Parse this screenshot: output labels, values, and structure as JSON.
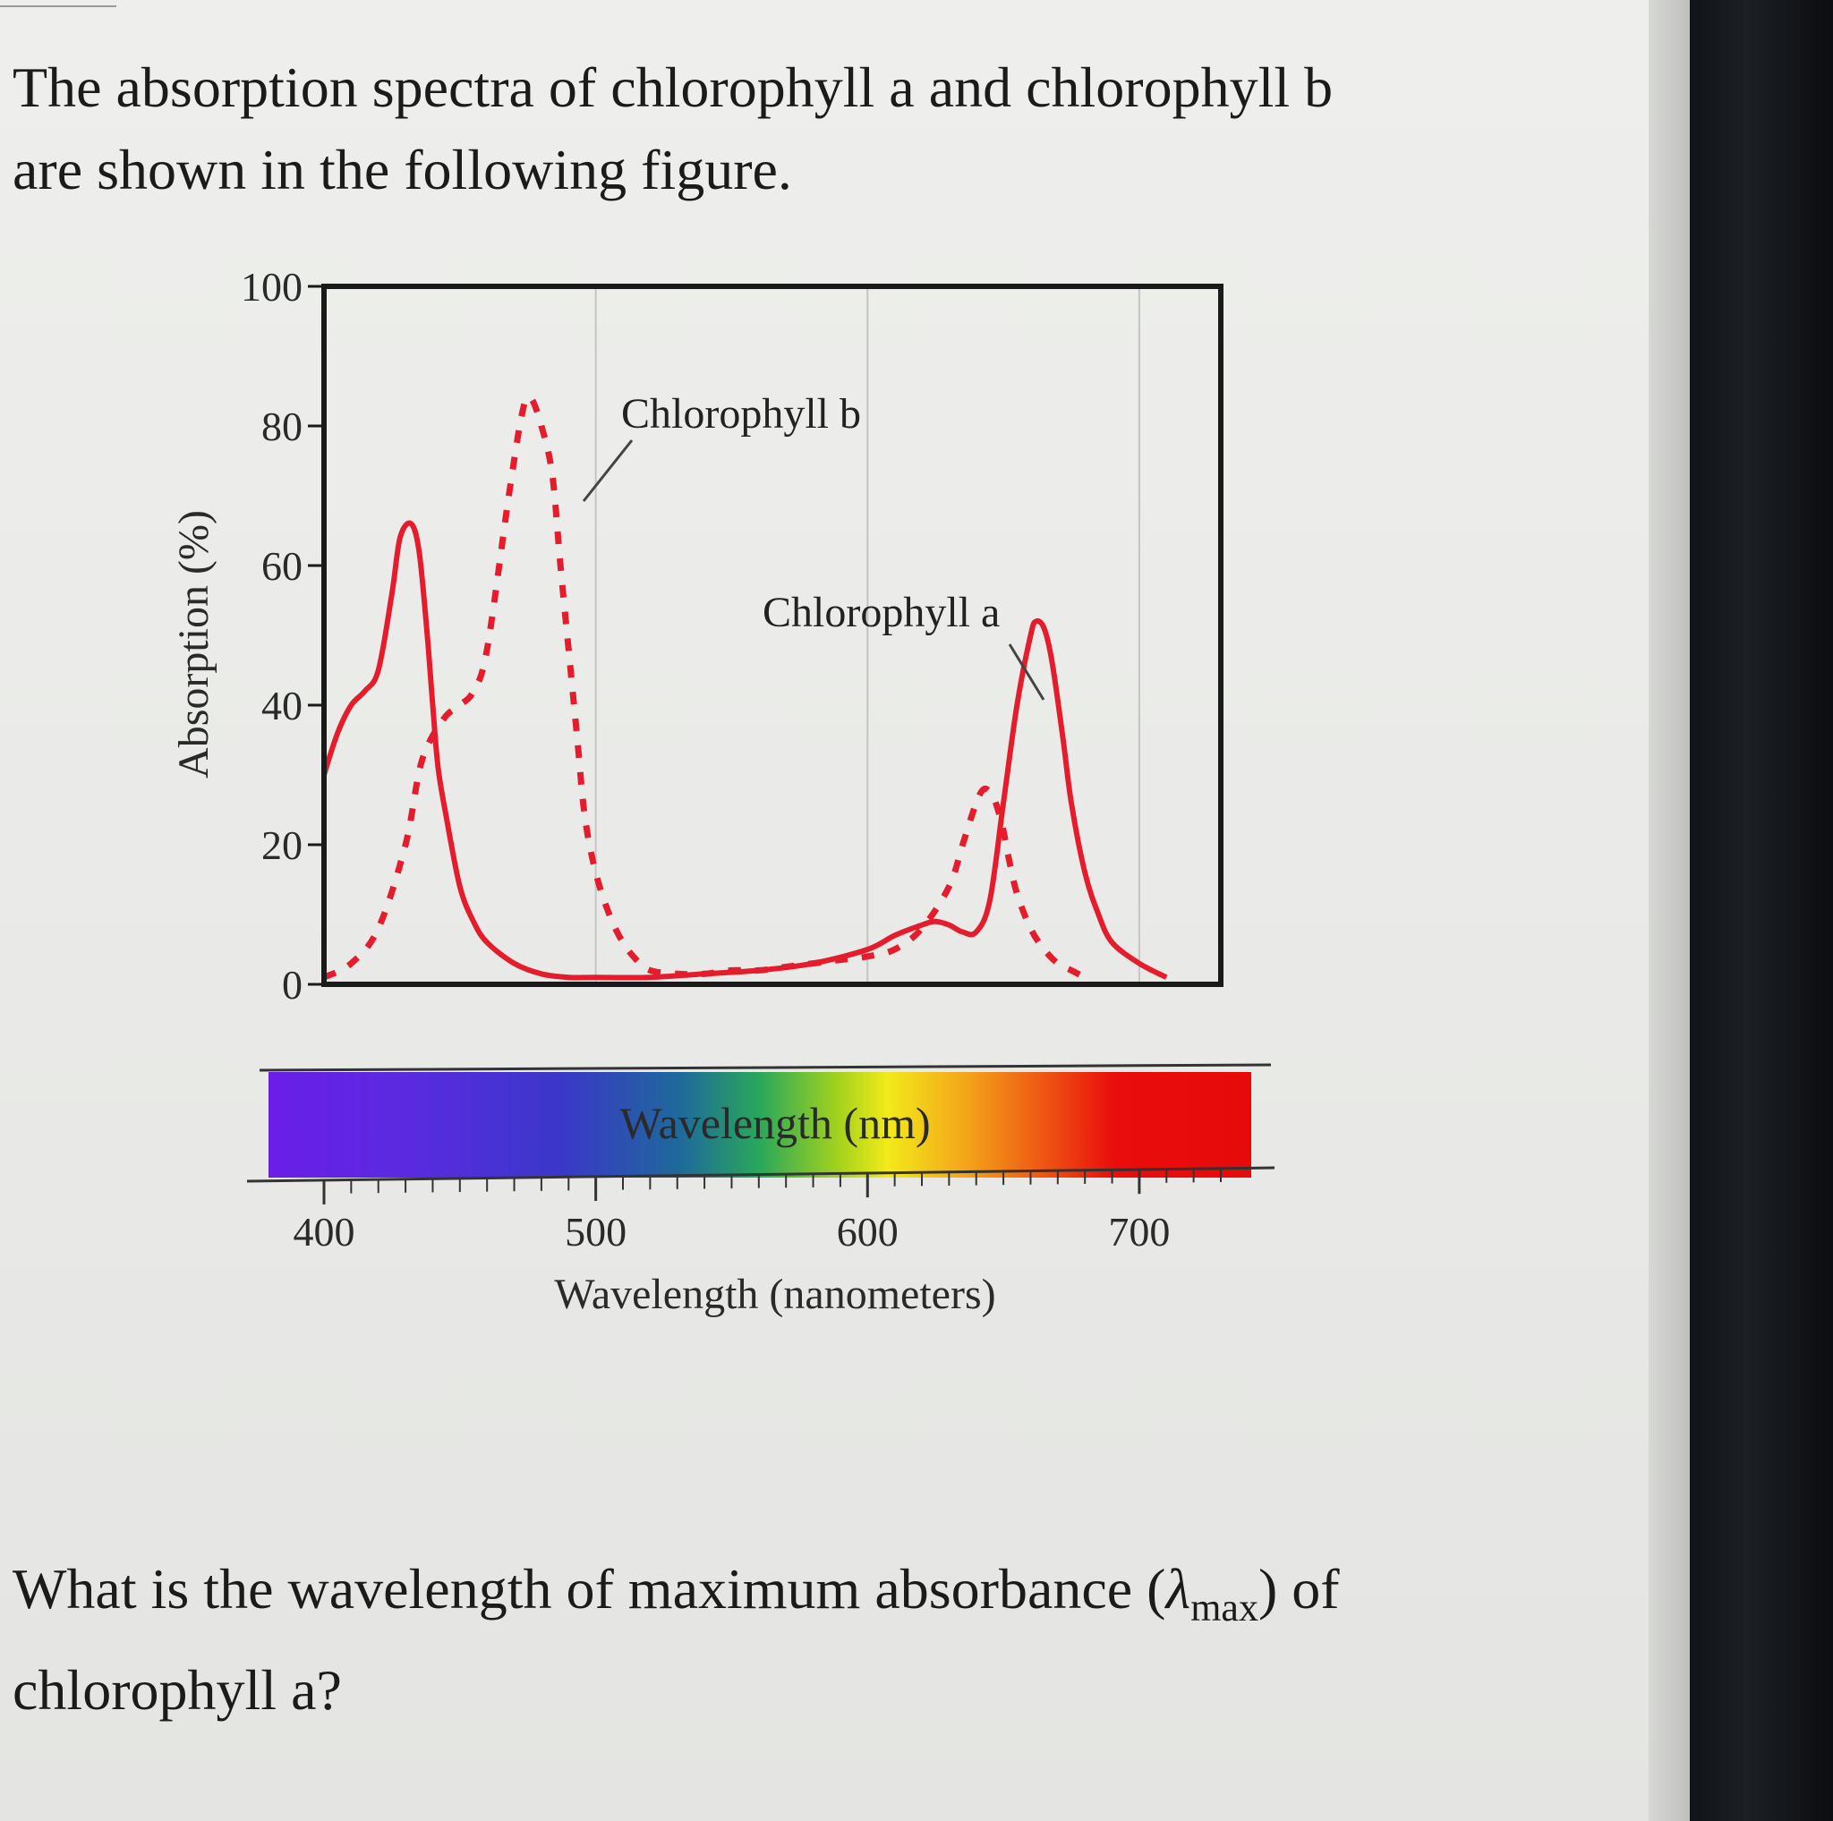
{
  "intro": {
    "line1": "The absorption spectra of chlorophyll a and chlorophyll b",
    "line2": "are shown in the following figure."
  },
  "question": {
    "line1_prefix": "What is the wavelength of maximum absorbance (",
    "lambda": "λ",
    "lambda_sub": "max",
    "line1_suffix": ") of",
    "line2": "chlorophyll a?"
  },
  "colors": {
    "curve": "#e41c2c",
    "frame": "#1a1a1a",
    "grid": "#c4c4c4",
    "leader": "#444444"
  },
  "chart_data": {
    "type": "line",
    "title": "",
    "xlabel": "Wavelength (nanometers)",
    "ylabel": "Absorption (%)",
    "spectrum_label": "Wavelength (nm)",
    "xlim": [
      400,
      730
    ],
    "ylim": [
      0,
      100
    ],
    "x_ticks": [
      400,
      500,
      600,
      700
    ],
    "y_ticks": [
      0,
      20,
      40,
      60,
      80,
      100
    ],
    "grid": "vertical lines at 500, 600, 700",
    "series": [
      {
        "name": "Chlorophyll b",
        "style": "dashed",
        "x": [
          400,
          410,
          420,
          430,
          436,
          444,
          450,
          455,
          460,
          468,
          473,
          476,
          480,
          484,
          487,
          490,
          493,
          496,
          500,
          505,
          510,
          515,
          520,
          530,
          540,
          550,
          560,
          570,
          580,
          590,
          600,
          610,
          620,
          630,
          635,
          640,
          643,
          646,
          648,
          650,
          652,
          655,
          660,
          665,
          670,
          675,
          680
        ],
        "y": [
          1,
          3,
          8,
          20,
          32,
          38,
          40,
          42,
          48,
          70,
          82,
          84,
          80,
          73,
          60,
          48,
          36,
          24,
          16,
          10,
          6,
          3.5,
          2,
          1.5,
          1.5,
          2,
          2,
          2.5,
          3,
          3.5,
          4,
          5,
          8,
          14,
          20,
          26,
          28,
          27,
          25,
          22,
          18,
          13,
          8,
          5,
          3,
          2,
          1
        ]
      },
      {
        "name": "Chlorophyll a",
        "style": "solid",
        "x": [
          400,
          405,
          410,
          415,
          420,
          425,
          428,
          432,
          435,
          438,
          440,
          442,
          445,
          450,
          455,
          460,
          470,
          480,
          490,
          500,
          520,
          540,
          560,
          580,
          600,
          610,
          620,
          625,
          630,
          635,
          640,
          645,
          650,
          655,
          660,
          662,
          665,
          668,
          672,
          675,
          680,
          685,
          690,
          700,
          710
        ],
        "y": [
          30,
          36,
          40,
          42,
          45,
          56,
          64,
          66,
          62,
          50,
          40,
          31,
          24,
          14,
          9,
          6,
          3,
          1.5,
          1,
          1,
          1,
          1.5,
          2,
          3,
          5,
          7,
          8.5,
          9,
          8.5,
          7.5,
          7.5,
          12,
          26,
          40,
          50,
          52,
          51,
          46,
          35,
          26,
          16,
          10,
          6,
          3,
          1
        ]
      }
    ],
    "annotations": [
      {
        "text": "Chlorophyll b",
        "target": "Chlorophyll b"
      },
      {
        "text": "Chlorophyll a",
        "target": "Chlorophyll a"
      }
    ]
  }
}
